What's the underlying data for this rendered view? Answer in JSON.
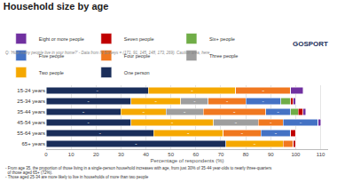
{
  "chart_data": {
    "type": "bar",
    "orientation": "horizontal",
    "stacked": true,
    "title": "Household size by age",
    "subtitle": "Q: 'How many people live in your home?' - Data from N Surveys = (171, 91, 145, 148, 173, 269). Caution area, here",
    "logo": "GOSPORT",
    "annotations": [
      "- From age 35, the proportion of those living in a single-person household increases with age, from just 30% of 35-44 year-olds to nearly three-quarters",
      "  of those aged 65+ (72%).",
      "- Those aged 25-34 are more likely to live in households of more than two people"
    ],
    "categories": [
      "15-24 years",
      "25-34 years",
      "35-44 years",
      "45-54 years",
      "55-64 years",
      "65+ years"
    ],
    "series": [
      {
        "name": "One person",
        "color": "#1a2e5a",
        "values": [
          41,
          34,
          30,
          34,
          43,
          72
        ],
        "value_labels": [
          "41",
          "34",
          "30",
          "34",
          "43",
          "72"
        ]
      },
      {
        "name": "Two people",
        "color": "#f5a800",
        "values": [
          35,
          20,
          18,
          33,
          28,
          23
        ],
        "value_labels": [
          "35",
          "20",
          "18",
          "33",
          "28",
          "23"
        ]
      },
      {
        "name": "Three people",
        "color": "#9e9e9e",
        "values": [
          0,
          11,
          15,
          18,
          0,
          0
        ],
        "value_labels": [
          null,
          "11",
          "15",
          "18",
          null,
          null
        ]
      },
      {
        "name": "Four people",
        "color": "#f07820",
        "values": [
          22,
          15,
          25,
          10,
          15,
          4
        ],
        "value_labels": [
          "22",
          "15",
          "25",
          "10",
          "15",
          null
        ]
      },
      {
        "name": "Five people",
        "color": "#4472c4",
        "values": [
          0,
          14,
          10,
          14,
          12,
          0
        ],
        "value_labels": [
          null,
          "14",
          "10",
          "14",
          "12",
          null
        ]
      },
      {
        "name": "Six+ people",
        "color": "#70ad47",
        "values": [
          0,
          4,
          3,
          0,
          0,
          0
        ],
        "value_labels": [
          null,
          null,
          null,
          null,
          null,
          null
        ]
      },
      {
        "name": "Seven people",
        "color": "#c00000",
        "values": [
          0,
          1,
          2,
          0,
          2,
          1
        ],
        "value_labels": [
          null,
          null,
          null,
          null,
          null,
          null
        ]
      },
      {
        "name": "Eight or more people",
        "color": "#7030a0",
        "values": [
          5,
          1,
          1,
          1,
          0,
          0
        ],
        "value_labels": [
          null,
          null,
          null,
          null,
          null,
          null
        ]
      }
    ],
    "xlabel": "Percentage of respondents (%)",
    "xlim": [
      0,
      113
    ],
    "xticks": [
      0,
      10,
      20,
      30,
      40,
      50,
      60,
      70,
      80,
      90,
      100,
      110
    ],
    "grid": true,
    "legend": "top",
    "data_labels": true
  }
}
